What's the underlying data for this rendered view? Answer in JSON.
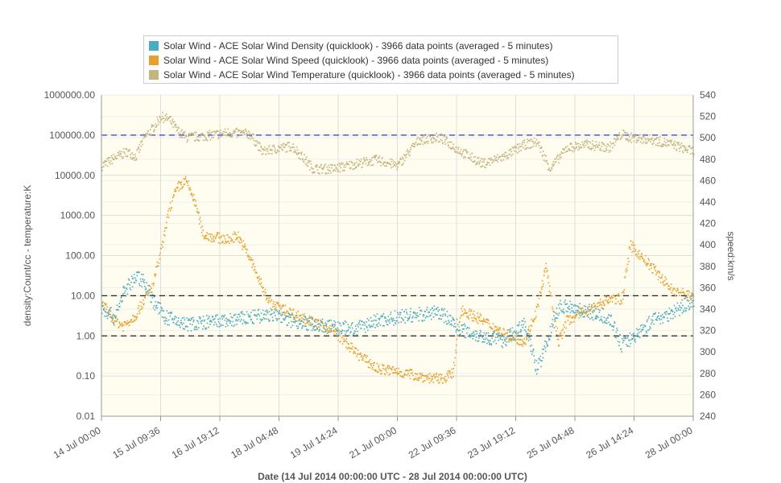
{
  "chart_data": {
    "type": "scatter",
    "legend": [
      {
        "label": "Solar Wind - ACE Solar Wind Density (quicklook) - 3966 data points (averaged - 5 minutes)",
        "color": "#4bacc6"
      },
      {
        "label": "Solar Wind - ACE Solar Wind Speed (quicklook) - 3966 data points (averaged - 5 minutes)",
        "color": "#e8a02a"
      },
      {
        "label": "Solar Wind - ACE Solar Wind Temperature (quicklook) - 3966 data points (averaged - 5 minutes)",
        "color": "#c4b47e"
      }
    ],
    "x_title": "Date (14 Jul 2014 00:00:00 UTC - 28 Jul 2014 00:00:00 UTC)",
    "y_left_title": "density:Count/cc - temperature:K",
    "y_right_title": "speed:km/s",
    "x_ticks": [
      "14 Jul 00:00",
      "15 Jul 09:36",
      "16 Jul 19:12",
      "18 Jul 04:48",
      "19 Jul 14:24",
      "21 Jul 00:00",
      "22 Jul 09:36",
      "23 Jul 19:12",
      "25 Jul 04:48",
      "26 Jul 14:24",
      "28 Jul 00:00"
    ],
    "x_range_days": [
      0,
      14
    ],
    "y_left_ticks": [
      "1000000.00",
      "100000.00",
      "10000.00",
      "1000.00",
      "100.00",
      "10.00",
      "1.00",
      "0.10",
      "0.01"
    ],
    "y_left_scale": "log",
    "y_left_range": [
      0.01,
      1000000
    ],
    "y_right_ticks": [
      "540",
      "520",
      "500",
      "480",
      "460",
      "440",
      "420",
      "400",
      "380",
      "360",
      "340",
      "320",
      "300",
      "280",
      "260",
      "240"
    ],
    "y_right_range": [
      240,
      540
    ],
    "reference_lines": [
      {
        "axis": "left",
        "value": 100000,
        "color": "#3333dd"
      },
      {
        "axis": "left",
        "value": 10,
        "color": "#222222"
      },
      {
        "axis": "left",
        "value": 1,
        "color": "#222222"
      }
    ],
    "series": [
      {
        "name": "Density",
        "color": "#4bacc6",
        "axis": "left",
        "x": [
          0,
          0.3,
          0.5,
          0.8,
          1.0,
          1.2,
          1.5,
          2.0,
          3.0,
          4.0,
          4.5,
          5.0,
          6.0,
          6.5,
          7.0,
          7.5,
          8.0,
          8.5,
          9.0,
          9.5,
          10.0,
          10.3,
          10.8,
          11.0,
          11.5,
          12.0,
          12.3,
          12.8,
          13.0,
          13.5,
          14.0
        ],
        "y": [
          5,
          3,
          12,
          30,
          25,
          8,
          3,
          2,
          2.5,
          3.5,
          2.5,
          2,
          1.5,
          2.5,
          3,
          3.5,
          4,
          1.5,
          1,
          0.8,
          2,
          0.15,
          5,
          6,
          4,
          3,
          0.6,
          1.5,
          2.5,
          4,
          8
        ]
      },
      {
        "name": "Speed",
        "color": "#e8a02a",
        "axis": "right",
        "x": [
          0,
          0.3,
          0.5,
          0.8,
          1.0,
          1.2,
          1.4,
          1.6,
          1.8,
          2.0,
          2.2,
          2.4,
          3.0,
          3.2,
          3.5,
          3.8,
          4.0,
          4.3,
          5.0,
          5.5,
          6.0,
          6.5,
          7.0,
          7.5,
          8.0,
          8.3,
          8.5,
          9.0,
          9.5,
          10.0,
          10.3,
          10.5,
          10.8,
          11.0,
          11.5,
          12.0,
          12.3,
          12.5,
          13.0,
          13.5,
          14.0
        ],
        "y": [
          345,
          330,
          325,
          335,
          350,
          362,
          395,
          435,
          455,
          460,
          440,
          410,
          405,
          410,
          388,
          360,
          345,
          340,
          328,
          320,
          300,
          285,
          282,
          278,
          275,
          280,
          340,
          330,
          318,
          310,
          342,
          380,
          310,
          330,
          340,
          350,
          350,
          400,
          380,
          358,
          352
        ]
      },
      {
        "name": "Temperature",
        "color": "#c4b47e",
        "axis": "left",
        "x": [
          0,
          0.3,
          0.6,
          0.8,
          1.0,
          1.2,
          1.4,
          1.6,
          1.8,
          2.0,
          2.5,
          3.0,
          3.5,
          3.8,
          4.0,
          4.5,
          5.0,
          5.5,
          6.0,
          6.5,
          7.0,
          7.5,
          8.0,
          8.5,
          9.0,
          9.5,
          10.0,
          10.3,
          10.6,
          11.0,
          11.5,
          12.0,
          12.3,
          12.5,
          13.0,
          13.5,
          14.0
        ],
        "y": [
          18000,
          28000,
          40000,
          30000,
          90000,
          150000,
          300000,
          250000,
          130000,
          90000,
          100000,
          120000,
          110000,
          40000,
          45000,
          55000,
          15000,
          15000,
          20000,
          25000,
          18000,
          80000,
          90000,
          40000,
          20000,
          30000,
          60000,
          70000,
          15000,
          50000,
          60000,
          50000,
          110000,
          90000,
          80000,
          60000,
          40000
        ]
      }
    ]
  }
}
